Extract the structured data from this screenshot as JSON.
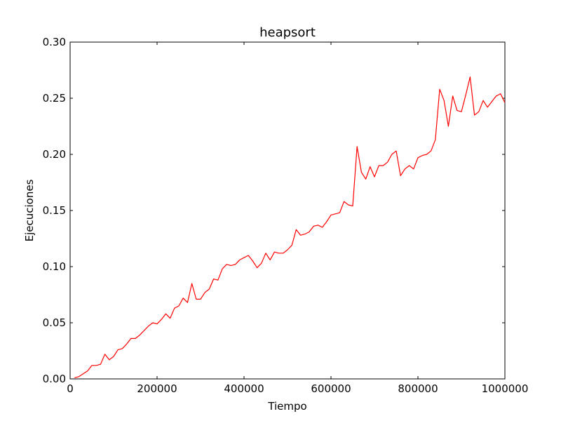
{
  "chart_data": {
    "type": "line",
    "title": "heapsort",
    "xlabel": "Tiempo",
    "ylabel": "Ejecuciones",
    "xlim": [
      0,
      1000000
    ],
    "ylim": [
      0,
      0.3
    ],
    "xticks": [
      0,
      200000,
      400000,
      600000,
      800000,
      1000000
    ],
    "xtick_labels": [
      "0",
      "200000",
      "400000",
      "600000",
      "800000",
      "1000000"
    ],
    "yticks": [
      0,
      0.05,
      0.1,
      0.15,
      0.2,
      0.25,
      0.3
    ],
    "ytick_labels": [
      "0.00",
      "0.05",
      "0.10",
      "0.15",
      "0.20",
      "0.25",
      "0.30"
    ],
    "grid": false,
    "legend": "none",
    "series": [
      {
        "color": "#ff0000",
        "x": [
          10000,
          20000,
          30000,
          40000,
          50000,
          60000,
          70000,
          80000,
          90000,
          100000,
          110000,
          120000,
          130000,
          140000,
          150000,
          160000,
          170000,
          180000,
          190000,
          200000,
          210000,
          220000,
          230000,
          240000,
          250000,
          260000,
          270000,
          280000,
          290000,
          300000,
          310000,
          320000,
          330000,
          340000,
          350000,
          360000,
          370000,
          380000,
          390000,
          400000,
          410000,
          420000,
          430000,
          440000,
          450000,
          460000,
          470000,
          480000,
          490000,
          500000,
          510000,
          520000,
          530000,
          540000,
          550000,
          560000,
          570000,
          580000,
          590000,
          600000,
          610000,
          620000,
          630000,
          640000,
          650000,
          660000,
          670000,
          680000,
          690000,
          700000,
          710000,
          720000,
          730000,
          740000,
          750000,
          760000,
          770000,
          780000,
          790000,
          800000,
          810000,
          820000,
          830000,
          840000,
          850000,
          860000,
          870000,
          880000,
          890000,
          900000,
          910000,
          920000,
          930000,
          940000,
          950000,
          960000,
          970000,
          980000,
          990000,
          1000000
        ],
        "y": [
          0.001,
          0.002,
          0.0045,
          0.007,
          0.012,
          0.012,
          0.013,
          0.022,
          0.017,
          0.02,
          0.026,
          0.027,
          0.031,
          0.036,
          0.036,
          0.039,
          0.043,
          0.047,
          0.05,
          0.049,
          0.053,
          0.058,
          0.054,
          0.063,
          0.065,
          0.072,
          0.068,
          0.085,
          0.071,
          0.071,
          0.077,
          0.08,
          0.089,
          0.088,
          0.098,
          0.102,
          0.101,
          0.102,
          0.106,
          0.108,
          0.11,
          0.105,
          0.099,
          0.103,
          0.112,
          0.106,
          0.113,
          0.112,
          0.112,
          0.115,
          0.119,
          0.133,
          0.128,
          0.129,
          0.131,
          0.136,
          0.137,
          0.135,
          0.14,
          0.146,
          0.147,
          0.148,
          0.158,
          0.155,
          0.154,
          0.207,
          0.184,
          0.178,
          0.189,
          0.18,
          0.19,
          0.19,
          0.193,
          0.2,
          0.203,
          0.181,
          0.187,
          0.19,
          0.187,
          0.197,
          0.199,
          0.2,
          0.203,
          0.213,
          0.258,
          0.248,
          0.225,
          0.252,
          0.239,
          0.238,
          0.253,
          0.269,
          0.235,
          0.238,
          0.248,
          0.242,
          0.247,
          0.252,
          0.254,
          0.246
        ]
      }
    ]
  }
}
